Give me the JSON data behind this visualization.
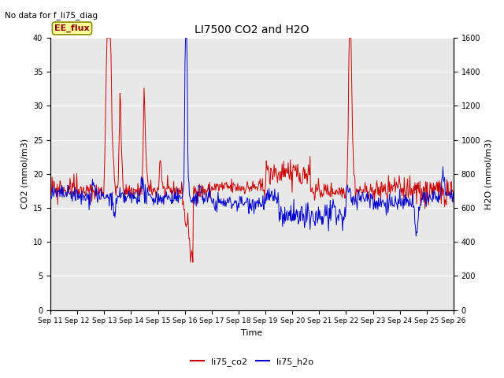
{
  "title": "LI7500 CO2 and H2O",
  "top_left_text": "No data for f_li75_diag",
  "legend_box_text": "EE_flux",
  "xlabel": "Time",
  "ylabel_left": "CO2 (mmol/m3)",
  "ylabel_right": "H2O (mmol/m3)",
  "ylim_left": [
    0,
    40
  ],
  "ylim_right": [
    0,
    1600
  ],
  "yticks_left": [
    0,
    5,
    10,
    15,
    20,
    25,
    30,
    35,
    40
  ],
  "yticks_right": [
    0,
    200,
    400,
    600,
    800,
    1000,
    1200,
    1400,
    1600
  ],
  "xtick_labels": [
    "Sep 11",
    "Sep 12",
    "Sep 13",
    "Sep 14",
    "Sep 15",
    "Sep 16",
    "Sep 17",
    "Sep 18",
    "Sep 19",
    "Sep 20",
    "Sep 21",
    "Sep 22",
    "Sep 23",
    "Sep 24",
    "Sep 25",
    "Sep 26"
  ],
  "color_co2": "#CC0000",
  "color_h2o": "#0000CC",
  "legend_co2": "li75_co2",
  "legend_h2o": "li75_h2o",
  "background_color": "#E8E8E8",
  "n_points": 720,
  "seed": 42
}
